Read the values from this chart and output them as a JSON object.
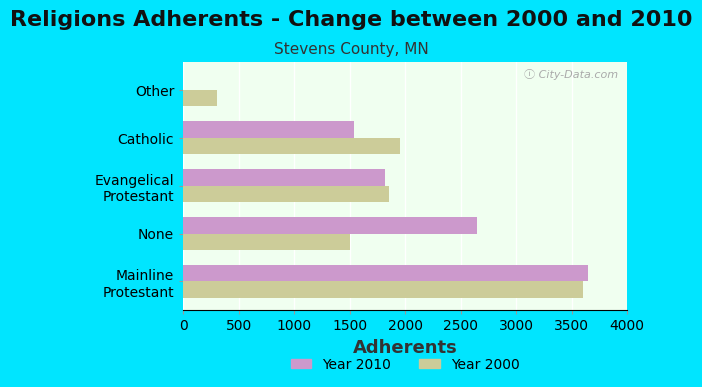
{
  "title": "Religions Adherents - Change between 2000 and 2010",
  "subtitle": "Stevens County, MN",
  "xlabel": "Adherents",
  "categories": [
    "Mainline\nProtestant",
    "None",
    "Evangelical\nProtestant",
    "Catholic",
    "Other"
  ],
  "year2010": [
    3650,
    2650,
    1820,
    1540,
    0
  ],
  "year2000": [
    3600,
    1500,
    1850,
    1950,
    300
  ],
  "color2010": "#cc99cc",
  "color2000": "#cccc99",
  "bg_outer": "#00e5ff",
  "bg_plot": "#f0fff0",
  "xlim": [
    0,
    4000
  ],
  "xticks": [
    0,
    500,
    1000,
    1500,
    2000,
    2500,
    3000,
    3500,
    4000
  ],
  "bar_height": 0.35,
  "legend_label_2010": "Year 2010",
  "legend_label_2000": "Year 2000",
  "title_fontsize": 16,
  "subtitle_fontsize": 11,
  "xlabel_fontsize": 13,
  "tick_fontsize": 10
}
